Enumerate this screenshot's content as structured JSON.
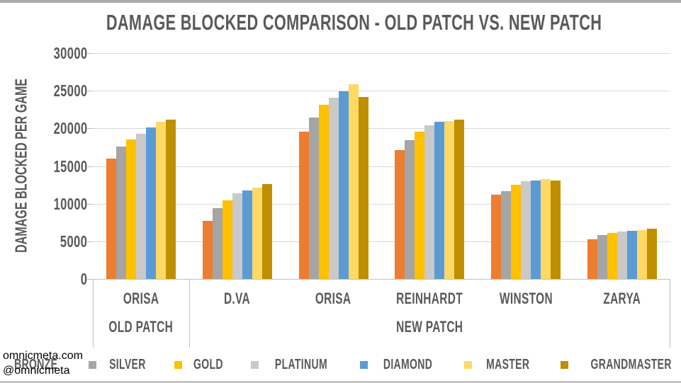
{
  "watermark": {
    "line1": "omnicmeta.com",
    "line2": "@omnicmeta"
  },
  "chart_data": {
    "type": "bar",
    "title": "DAMAGE BLOCKED COMPARISON - OLD PATCH VS. NEW PATCH",
    "ylabel": "DAMAGE BLOCKED PER GAME",
    "xlabel": "",
    "ylim": [
      0,
      30000
    ],
    "yticks": [
      0,
      5000,
      10000,
      15000,
      20000,
      25000,
      30000
    ],
    "grid": true,
    "legend_position": "bottom",
    "categories": [
      "ORISA",
      "D.VA",
      "ORISA",
      "REINHARDT",
      "WINSTON",
      "ZARYA"
    ],
    "group_labels": [
      {
        "label": "OLD PATCH",
        "span": 1
      },
      {
        "label": "NEW PATCH",
        "span": 5
      }
    ],
    "series": [
      {
        "name": "BRONZE",
        "color": "#ED7D31",
        "values": [
          16000,
          7700,
          19600,
          17100,
          11200,
          5300
        ]
      },
      {
        "name": "SILVER",
        "color": "#A5A5A5",
        "values": [
          17600,
          9400,
          21400,
          18400,
          11700,
          5800
        ]
      },
      {
        "name": "GOLD",
        "color": "#FFC000",
        "values": [
          18500,
          10400,
          23100,
          19600,
          12500,
          6100
        ]
      },
      {
        "name": "PLATINUM",
        "color": "#C9C9C9",
        "values": [
          19300,
          11400,
          24100,
          20400,
          13000,
          6300
        ]
      },
      {
        "name": "DIAMOND",
        "color": "#5B9BD5",
        "values": [
          20100,
          11800,
          24900,
          20900,
          13100,
          6400
        ]
      },
      {
        "name": "MASTER",
        "color": "#FFD966",
        "values": [
          20900,
          12100,
          25900,
          21000,
          13300,
          6500
        ]
      },
      {
        "name": "GRANDMASTER",
        "color": "#BF8F00",
        "values": [
          21200,
          12600,
          24200,
          21200,
          13100,
          6700
        ]
      }
    ],
    "colors": {
      "text": "#595959",
      "gridline": "#D9D9D9",
      "axis_line": "#BFBFBF"
    }
  }
}
